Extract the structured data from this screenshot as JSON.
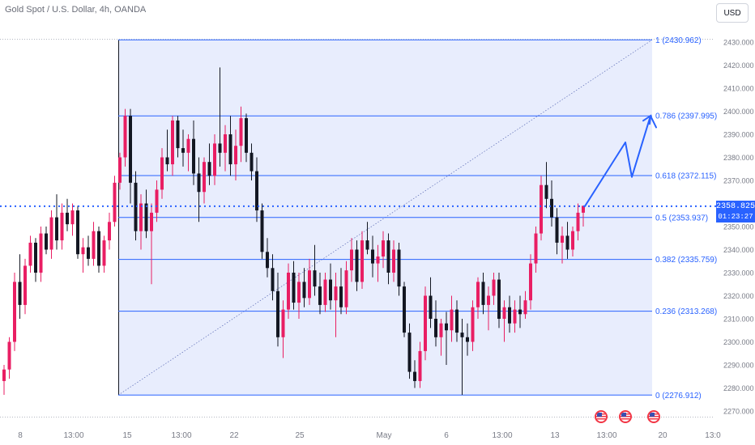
{
  "header": {
    "title": "Gold Spot / U.S. Dollar, 4h, OANDA",
    "currency": "USD"
  },
  "price_badge": {
    "price": "2358.825",
    "countdown": "01:23:27"
  },
  "colors": {
    "up": "#e91e63",
    "down": "#131722",
    "fib_line": "#2962ff",
    "fib_fill": "#e8edfd",
    "axis_text": "#787b86"
  },
  "chart_data": {
    "type": "candlestick",
    "symbol": "Gold Spot / U.S. Dollar",
    "timeframe": "4h",
    "source": "OANDA",
    "ylim": [
      2266,
      2436
    ],
    "y_ticks": [
      "2430.000",
      "2420.000",
      "2410.000",
      "2400.000",
      "2390.000",
      "2380.000",
      "2370.000",
      "2360.000",
      "2350.000",
      "2340.000",
      "2330.000",
      "2320.000",
      "2310.000",
      "2300.000",
      "2290.000",
      "2280.000",
      "2270.000"
    ],
    "x_ticks": [
      "8",
      "13:00",
      "15",
      "13:00",
      "22",
      "25",
      "May",
      "6",
      "13:00",
      "13",
      "13:00",
      "20",
      "13:0"
    ],
    "fibonacci": [
      {
        "ratio": "1",
        "price": "2430.962"
      },
      {
        "ratio": "0.786",
        "price": "2397.995"
      },
      {
        "ratio": "0.618",
        "price": "2372.115"
      },
      {
        "ratio": "0.5",
        "price": "2353.937"
      },
      {
        "ratio": "0.382",
        "price": "2335.759"
      },
      {
        "ratio": "0.236",
        "price": "2313.268"
      },
      {
        "ratio": "0",
        "price": "2276.912"
      }
    ],
    "current_price": 2358.825,
    "projection": [
      2358.8,
      2386.5,
      2371.5,
      2398.0,
      2393.0
    ],
    "candles": [
      [
        2283,
        2290,
        2277,
        2288
      ],
      [
        2288,
        2302,
        2284,
        2300
      ],
      [
        2300,
        2330,
        2296,
        2326
      ],
      [
        2326,
        2338,
        2310,
        2316
      ],
      [
        2316,
        2336,
        2312,
        2333
      ],
      [
        2333,
        2346,
        2330,
        2343
      ],
      [
        2343,
        2345,
        2326,
        2330
      ],
      [
        2330,
        2350,
        2326,
        2347
      ],
      [
        2347,
        2350,
        2338,
        2340
      ],
      [
        2340,
        2357,
        2336,
        2354
      ],
      [
        2354,
        2364,
        2340,
        2344
      ],
      [
        2344,
        2360,
        2340,
        2356
      ],
      [
        2356,
        2362,
        2348,
        2351
      ],
      [
        2351,
        2360,
        2346,
        2357
      ],
      [
        2357,
        2359,
        2336,
        2338
      ],
      [
        2338,
        2345,
        2330,
        2341
      ],
      [
        2341,
        2346,
        2333,
        2336
      ],
      [
        2336,
        2352,
        2333,
        2348
      ],
      [
        2348,
        2350,
        2330,
        2333
      ],
      [
        2333,
        2346,
        2330,
        2344
      ],
      [
        2344,
        2356,
        2340,
        2352
      ],
      [
        2352,
        2372,
        2350,
        2369
      ],
      [
        2369,
        2382,
        2366,
        2380
      ],
      [
        2380,
        2401,
        2376,
        2398
      ],
      [
        2398,
        2401,
        2360,
        2369
      ],
      [
        2369,
        2374,
        2344,
        2348
      ],
      [
        2348,
        2364,
        2340,
        2360
      ],
      [
        2360,
        2366,
        2345,
        2348
      ],
      [
        2348,
        2360,
        2325,
        2356
      ],
      [
        2356,
        2370,
        2352,
        2366
      ],
      [
        2366,
        2384,
        2362,
        2380
      ],
      [
        2380,
        2392,
        2374,
        2377
      ],
      [
        2377,
        2398,
        2372,
        2396
      ],
      [
        2396,
        2398,
        2380,
        2384
      ],
      [
        2384,
        2392,
        2376,
        2382
      ],
      [
        2382,
        2390,
        2374,
        2388
      ],
      [
        2388,
        2396,
        2368,
        2373
      ],
      [
        2373,
        2380,
        2352,
        2365
      ],
      [
        2365,
        2380,
        2360,
        2378
      ],
      [
        2378,
        2386,
        2368,
        2372
      ],
      [
        2372,
        2390,
        2368,
        2386
      ],
      [
        2386,
        2419,
        2376,
        2382
      ],
      [
        2382,
        2394,
        2374,
        2390
      ],
      [
        2390,
        2398,
        2372,
        2377
      ],
      [
        2377,
        2392,
        2370,
        2385
      ],
      [
        2385,
        2402,
        2378,
        2397
      ],
      [
        2397,
        2399,
        2378,
        2382
      ],
      [
        2382,
        2386,
        2370,
        2374
      ],
      [
        2374,
        2380,
        2352,
        2357
      ],
      [
        2357,
        2360,
        2336,
        2339
      ],
      [
        2339,
        2345,
        2328,
        2332
      ],
      [
        2332,
        2338,
        2318,
        2322
      ],
      [
        2322,
        2330,
        2298,
        2302
      ],
      [
        2302,
        2318,
        2293,
        2314
      ],
      [
        2314,
        2334,
        2310,
        2330
      ],
      [
        2330,
        2335,
        2314,
        2317
      ],
      [
        2317,
        2330,
        2310,
        2326
      ],
      [
        2326,
        2332,
        2315,
        2319
      ],
      [
        2319,
        2336,
        2316,
        2331
      ],
      [
        2331,
        2342,
        2320,
        2324
      ],
      [
        2324,
        2330,
        2312,
        2316
      ],
      [
        2316,
        2330,
        2313,
        2327
      ],
      [
        2327,
        2334,
        2314,
        2318
      ],
      [
        2318,
        2330,
        2302,
        2324
      ],
      [
        2324,
        2332,
        2312,
        2315
      ],
      [
        2315,
        2335,
        2312,
        2331
      ],
      [
        2331,
        2345,
        2326,
        2340
      ],
      [
        2340,
        2344,
        2322,
        2326
      ],
      [
        2326,
        2348,
        2323,
        2344
      ],
      [
        2344,
        2352,
        2338,
        2340
      ],
      [
        2340,
        2346,
        2328,
        2334
      ],
      [
        2334,
        2342,
        2326,
        2337
      ],
      [
        2337,
        2348,
        2332,
        2344
      ],
      [
        2344,
        2347,
        2325,
        2330
      ],
      [
        2330,
        2344,
        2326,
        2340
      ],
      [
        2340,
        2343,
        2320,
        2324
      ],
      [
        2324,
        2326,
        2302,
        2304
      ],
      [
        2304,
        2308,
        2284,
        2287
      ],
      [
        2287,
        2292,
        2280,
        2283
      ],
      [
        2283,
        2300,
        2280,
        2296
      ],
      [
        2296,
        2324,
        2292,
        2320
      ],
      [
        2320,
        2328,
        2306,
        2310
      ],
      [
        2310,
        2318,
        2298,
        2302
      ],
      [
        2302,
        2310,
        2294,
        2308
      ],
      [
        2308,
        2313,
        2290,
        2305
      ],
      [
        2305,
        2320,
        2300,
        2314
      ],
      [
        2314,
        2318,
        2300,
        2304
      ],
      [
        2304,
        2310,
        2277,
        2302
      ],
      [
        2302,
        2308,
        2294,
        2300
      ],
      [
        2300,
        2318,
        2296,
        2315
      ],
      [
        2315,
        2328,
        2310,
        2326
      ],
      [
        2326,
        2330,
        2312,
        2316
      ],
      [
        2316,
        2324,
        2305,
        2320
      ],
      [
        2320,
        2330,
        2316,
        2327
      ],
      [
        2327,
        2330,
        2306,
        2310
      ],
      [
        2310,
        2318,
        2300,
        2315
      ],
      [
        2315,
        2320,
        2304,
        2308
      ],
      [
        2308,
        2318,
        2304,
        2314
      ],
      [
        2314,
        2320,
        2306,
        2312
      ],
      [
        2312,
        2322,
        2310,
        2318
      ],
      [
        2318,
        2338,
        2314,
        2334
      ],
      [
        2334,
        2350,
        2330,
        2347
      ],
      [
        2347,
        2372,
        2344,
        2368
      ],
      [
        2368,
        2378,
        2358,
        2362
      ],
      [
        2362,
        2370,
        2350,
        2354
      ],
      [
        2354,
        2358,
        2338,
        2343
      ],
      [
        2343,
        2350,
        2334,
        2346
      ],
      [
        2346,
        2352,
        2336,
        2340
      ],
      [
        2340,
        2350,
        2337,
        2348
      ],
      [
        2348,
        2360,
        2344,
        2356
      ],
      [
        2356,
        2359,
        2350,
        2359
      ]
    ]
  }
}
